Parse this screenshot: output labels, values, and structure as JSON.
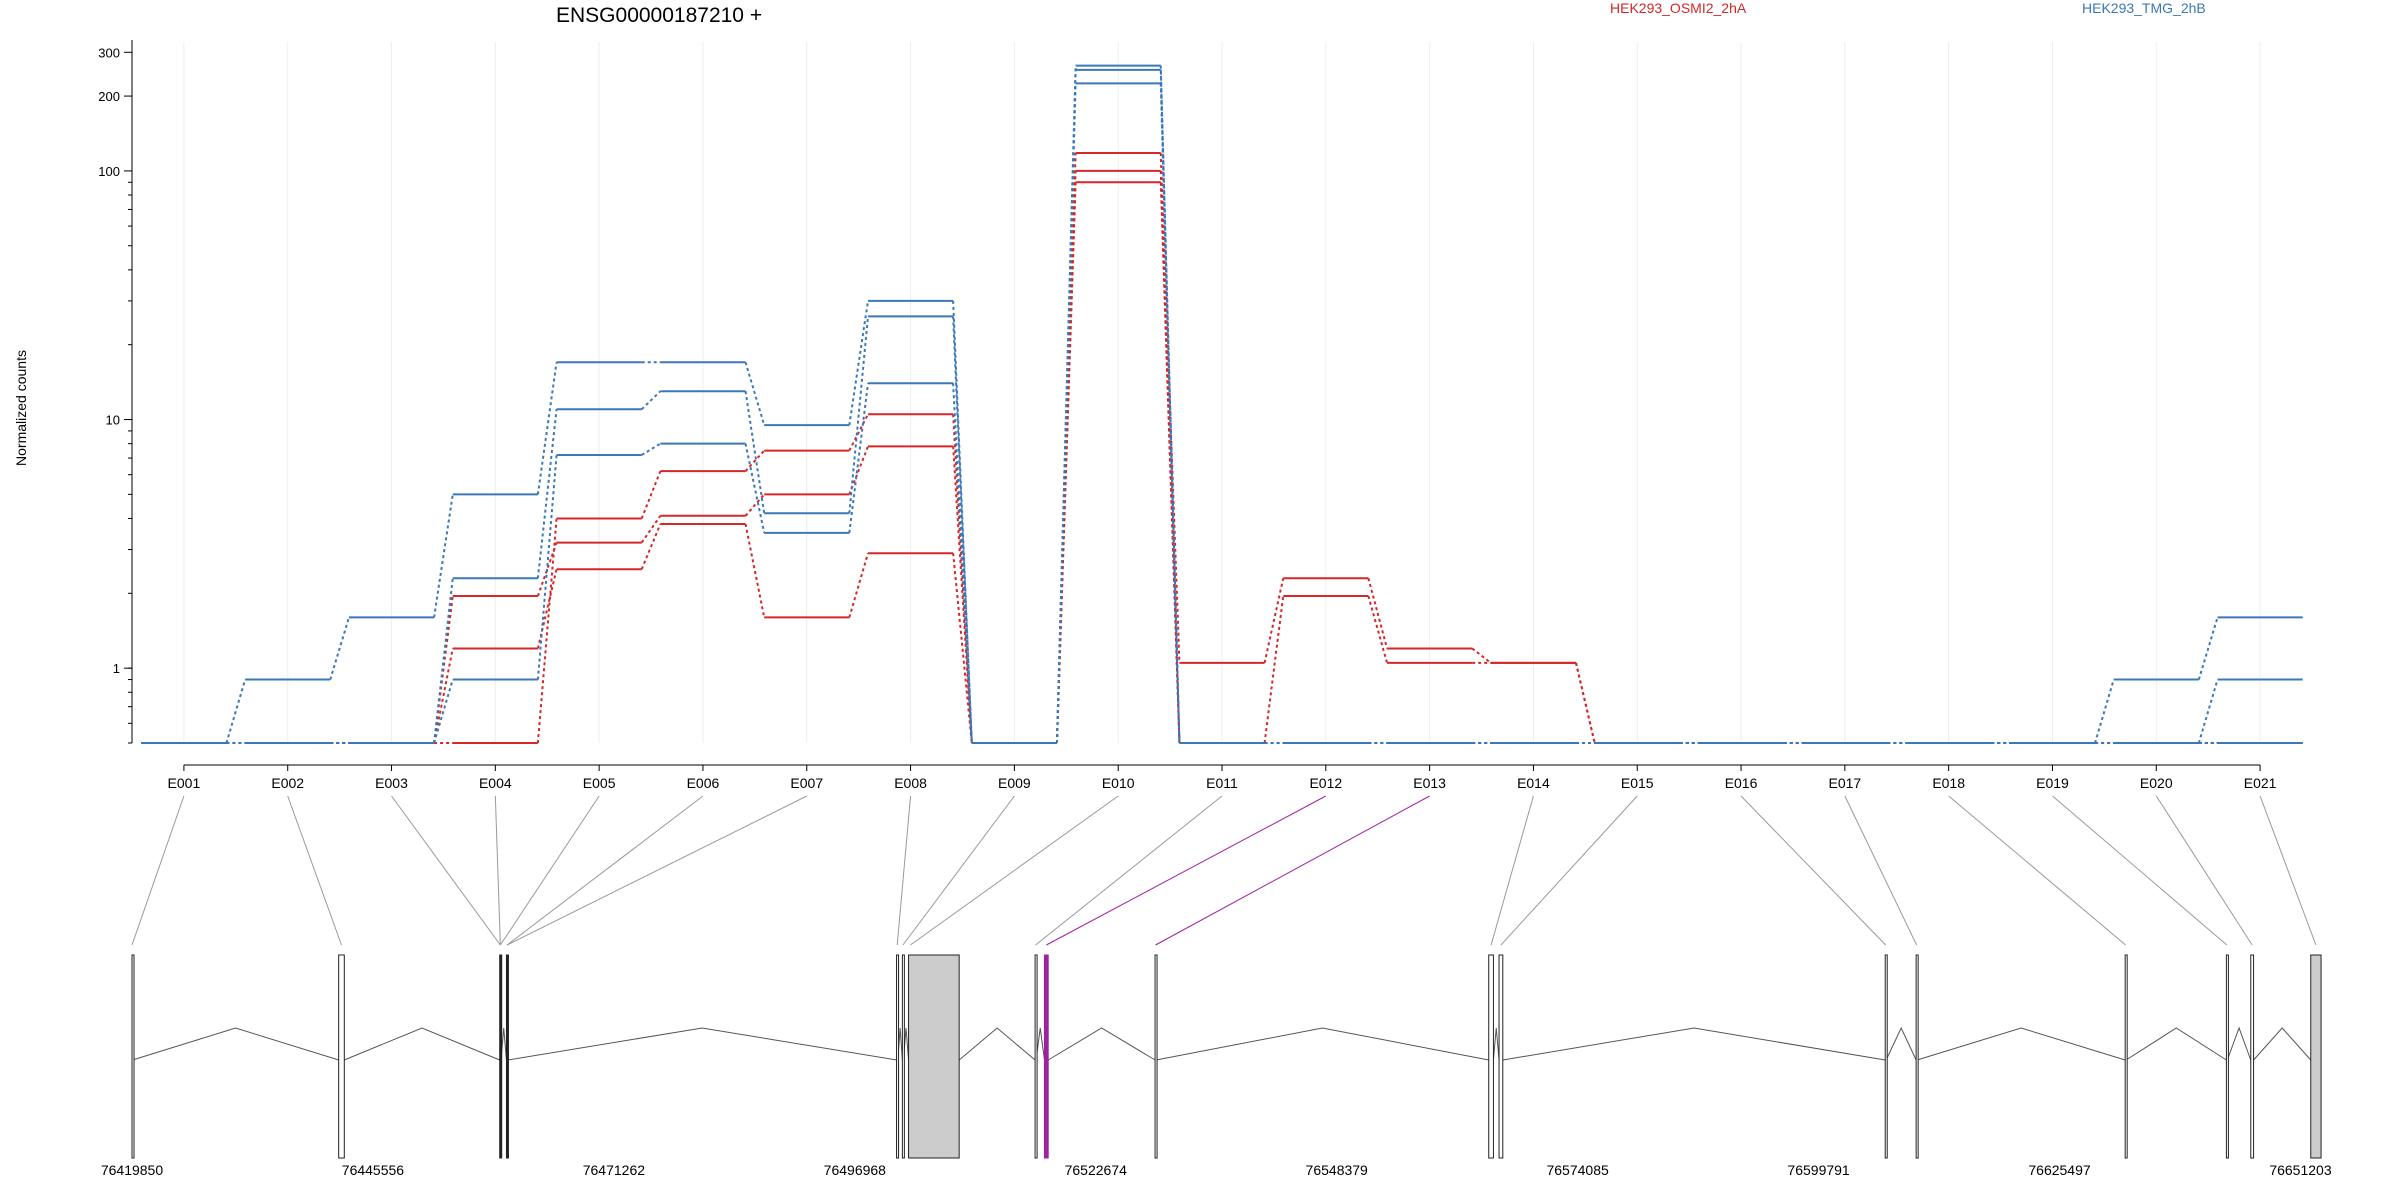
{
  "chart_data": {
    "type": "line",
    "title": "ENSG00000187210 +",
    "ylabel": "Normalized counts",
    "yscale": "log",
    "ylim": [
      0.5,
      330
    ],
    "yticks": [
      1,
      10,
      100,
      200,
      300
    ],
    "categories": [
      "E001",
      "E002",
      "E003",
      "E004",
      "E005",
      "E006",
      "E007",
      "E008",
      "E009",
      "E010",
      "E011",
      "E012",
      "E013",
      "E014",
      "E015",
      "E016",
      "E017",
      "E018",
      "E019",
      "E020",
      "E021"
    ],
    "legend": [
      {
        "label": "HEK293_OSMI2_2hA",
        "color": "#d62728"
      },
      {
        "label": "HEK293_TMG_2hB",
        "color": "#3a78b8"
      }
    ],
    "series": [
      {
        "group": "HEK293_OSMI2_2hA",
        "color": "#d62728",
        "values": [
          0.5,
          0.5,
          0.5,
          0.5,
          4.0,
          6.2,
          7.5,
          10.5,
          0.5,
          118,
          1.05,
          2.3,
          1.2,
          1.05,
          0.5,
          0.5,
          0.5,
          0.5,
          0.5,
          0.5,
          0.5
        ]
      },
      {
        "group": "HEK293_OSMI2_2hA",
        "color": "#d62728",
        "values": [
          0.5,
          0.5,
          0.5,
          1.95,
          3.2,
          4.1,
          5.0,
          7.8,
          0.5,
          100,
          0.5,
          1.95,
          1.05,
          1.05,
          0.5,
          0.5,
          0.5,
          0.5,
          0.5,
          0.5,
          0.5
        ]
      },
      {
        "group": "HEK293_OSMI2_2hA",
        "color": "#d62728",
        "values": [
          0.5,
          0.5,
          0.5,
          1.2,
          2.5,
          3.8,
          1.6,
          2.9,
          0.5,
          90,
          0.5,
          0.5,
          0.5,
          0.5,
          0.5,
          0.5,
          0.5,
          0.5,
          0.5,
          0.5,
          0.5
        ]
      },
      {
        "group": "HEK293_TMG_2hB",
        "color": "#3a78b8",
        "values": [
          0.5,
          0.9,
          1.6,
          5.0,
          17,
          17,
          9.5,
          30,
          0.5,
          265,
          0.5,
          0.5,
          0.5,
          0.5,
          0.5,
          0.5,
          0.5,
          0.5,
          0.5,
          0.9,
          1.6
        ]
      },
      {
        "group": "HEK293_TMG_2hB",
        "color": "#3a78b8",
        "values": [
          0.5,
          0.5,
          0.5,
          2.3,
          11,
          13,
          4.2,
          26,
          0.5,
          255,
          0.5,
          0.5,
          0.5,
          0.5,
          0.5,
          0.5,
          0.5,
          0.5,
          0.5,
          0.5,
          0.9
        ]
      },
      {
        "group": "HEK293_TMG_2hB",
        "color": "#3a78b8",
        "values": [
          0.5,
          0.5,
          0.5,
          0.9,
          7.2,
          8.0,
          3.5,
          14,
          0.5,
          225,
          0.5,
          0.5,
          0.5,
          0.5,
          0.5,
          0.5,
          0.5,
          0.5,
          0.5,
          0.5,
          0.5
        ]
      }
    ],
    "gene_model": {
      "range": [
        76419850,
        76653500
      ],
      "ticks": [
        76419850,
        76445556,
        76471262,
        76496968,
        76522674,
        76548379,
        76574085,
        76599791,
        76625497,
        76651203
      ],
      "exons": [
        {
          "start": 76419850,
          "end": 76419900,
          "fill": "#ffffff"
        },
        {
          "start": 76441900,
          "end": 76442500,
          "fill": "#ffffff"
        },
        {
          "start": 76459080,
          "end": 76459220,
          "fill": "#222222"
        },
        {
          "start": 76459800,
          "end": 76459950,
          "fill": "#222222"
        },
        {
          "start": 76501420,
          "end": 76501560,
          "fill": "#ffffff"
        },
        {
          "start": 76502040,
          "end": 76502160,
          "fill": "#ffffff"
        },
        {
          "start": 76502700,
          "end": 76508100,
          "fill": "#cccccc"
        },
        {
          "start": 76516200,
          "end": 76516300,
          "fill": "#ffffff"
        },
        {
          "start": 76517200,
          "end": 76517600,
          "fill": "#a020a0"
        },
        {
          "start": 76529000,
          "end": 76529100,
          "fill": "#ffffff"
        },
        {
          "start": 76564600,
          "end": 76565100,
          "fill": "#ffffff"
        },
        {
          "start": 76565700,
          "end": 76566100,
          "fill": "#ffffff"
        },
        {
          "start": 76606900,
          "end": 76607000,
          "fill": "#ffffff"
        },
        {
          "start": 76610200,
          "end": 76610300,
          "fill": "#ffffff"
        },
        {
          "start": 76632500,
          "end": 76632600,
          "fill": "#ffffff"
        },
        {
          "start": 76643300,
          "end": 76643400,
          "fill": "#ffffff"
        },
        {
          "start": 76645900,
          "end": 76646200,
          "fill": "#ffffff"
        },
        {
          "start": 76652300,
          "end": 76653400,
          "fill": "#cccccc"
        }
      ],
      "exon_links": [
        {
          "exon": "E001",
          "pos": 76419850,
          "color": "#999999"
        },
        {
          "exon": "E002",
          "pos": 76442200,
          "color": "#999999"
        },
        {
          "exon": "E003",
          "pos": 76459150,
          "color": "#999999"
        },
        {
          "exon": "E004",
          "pos": 76459150,
          "color": "#999999"
        },
        {
          "exon": "E005",
          "pos": 76459150,
          "color": "#999999"
        },
        {
          "exon": "E006",
          "pos": 76459870,
          "color": "#999999"
        },
        {
          "exon": "E007",
          "pos": 76459870,
          "color": "#999999"
        },
        {
          "exon": "E008",
          "pos": 76501490,
          "color": "#999999"
        },
        {
          "exon": "E009",
          "pos": 76502100,
          "color": "#999999"
        },
        {
          "exon": "E010",
          "pos": 76502900,
          "color": "#999999"
        },
        {
          "exon": "E011",
          "pos": 76516250,
          "color": "#999999"
        },
        {
          "exon": "E012",
          "pos": 76517400,
          "color": "#a020a0"
        },
        {
          "exon": "E013",
          "pos": 76529050,
          "color": "#a020a0"
        },
        {
          "exon": "E014",
          "pos": 76564850,
          "color": "#999999"
        },
        {
          "exon": "E015",
          "pos": 76565900,
          "color": "#999999"
        },
        {
          "exon": "E016",
          "pos": 76606950,
          "color": "#999999"
        },
        {
          "exon": "E017",
          "pos": 76610250,
          "color": "#999999"
        },
        {
          "exon": "E018",
          "pos": 76632550,
          "color": "#999999"
        },
        {
          "exon": "E019",
          "pos": 76643350,
          "color": "#999999"
        },
        {
          "exon": "E020",
          "pos": 76646050,
          "color": "#999999"
        },
        {
          "exon": "E021",
          "pos": 76652850,
          "color": "#999999"
        }
      ]
    }
  }
}
